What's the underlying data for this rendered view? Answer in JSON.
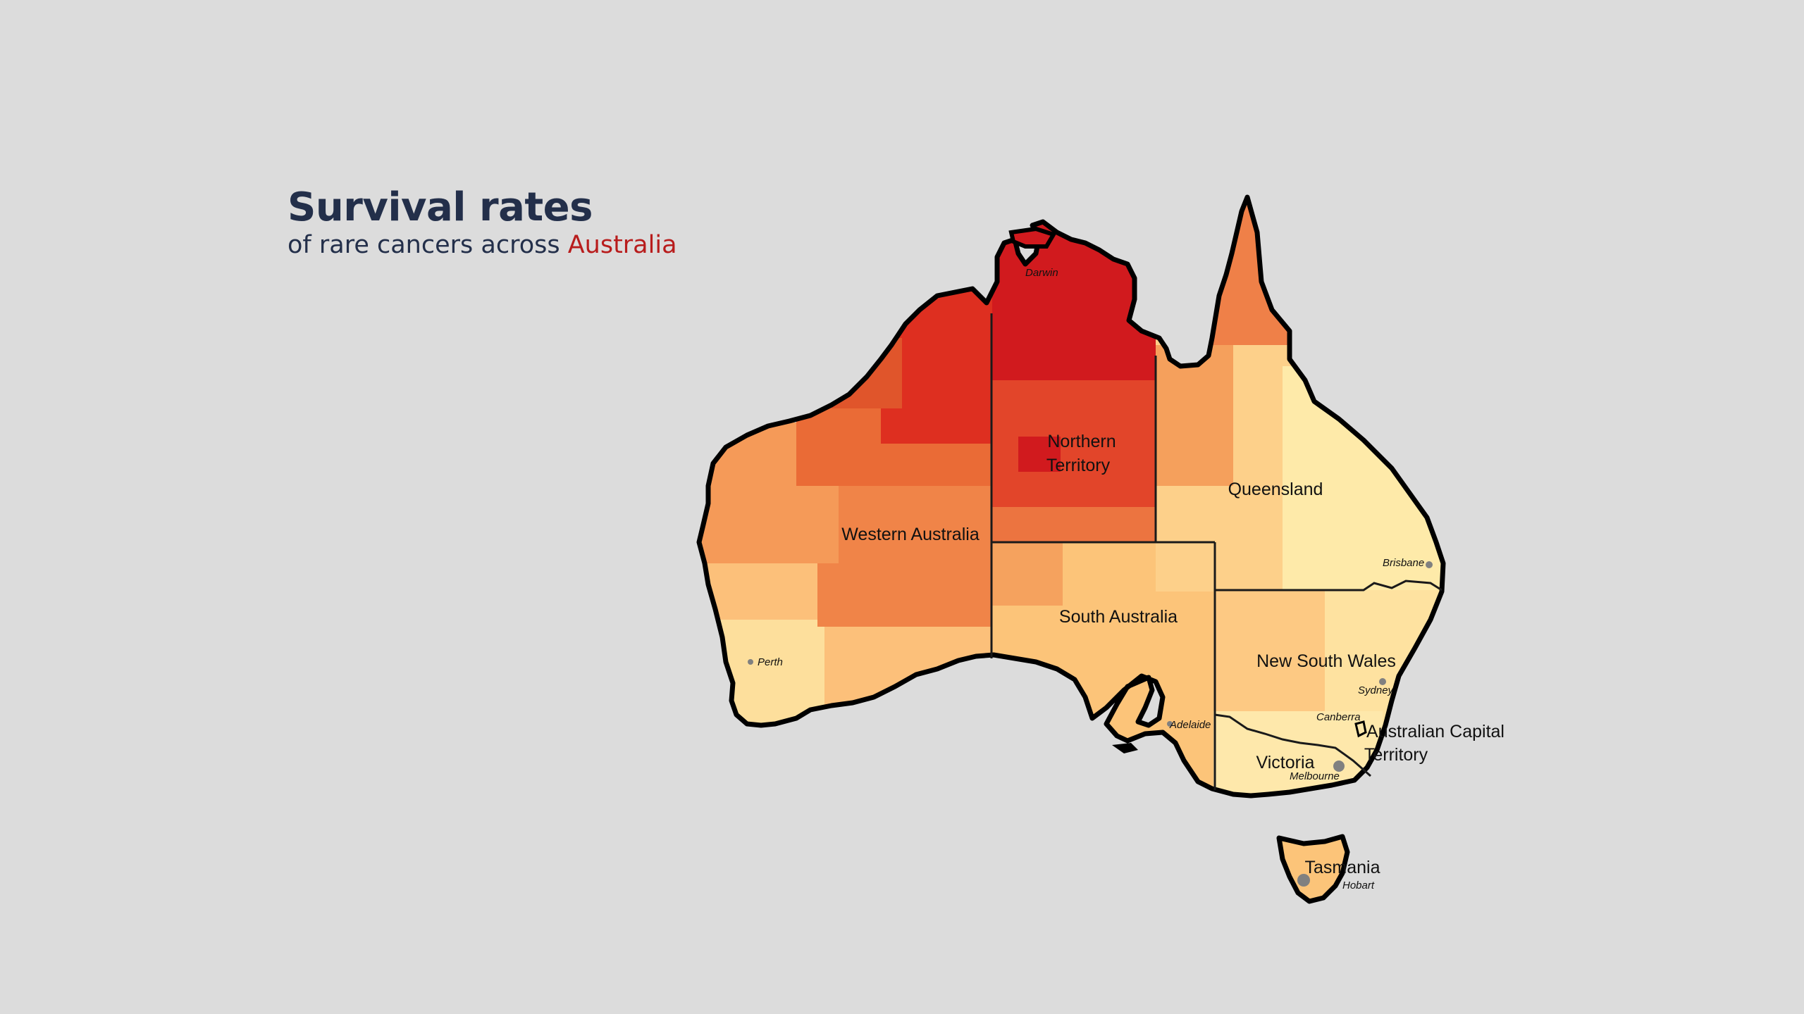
{
  "title": "Survival rates",
  "subtitle_pre": "of rare cancers across ",
  "subtitle_accent": "Australia",
  "colors": {
    "background": "#dcdcdc",
    "title": "#232f4a",
    "accent": "#b81c1c",
    "scale_low": "#fdeeb0",
    "scale_mid": "#f28a48",
    "scale_high": "#d0161b"
  },
  "states": {
    "wa": "Western Australia",
    "nt_line1": "Northern",
    "nt_line2": "Territory",
    "qld": "Queensland",
    "sa": "South Australia",
    "nsw": "New South Wales",
    "act_line1": "Australian Capital",
    "act_line2": "Territory",
    "vic": "Victoria",
    "tas": "Tasmania"
  },
  "cities": {
    "darwin": "Darwin",
    "brisbane": "Brisbane",
    "perth": "Perth",
    "sydney": "Sydney",
    "canberra": "Canberra",
    "adelaide": "Adelaide",
    "melbourne": "Melbourne",
    "hobart": "Hobart"
  }
}
